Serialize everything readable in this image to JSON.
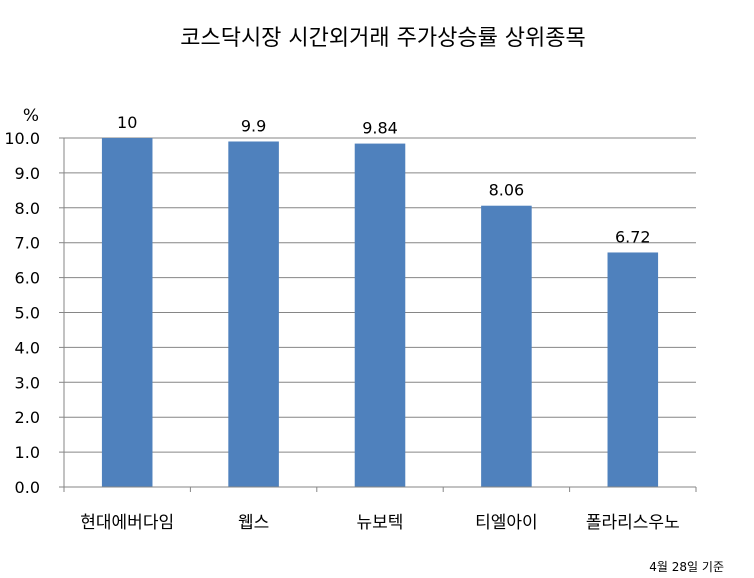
{
  "chart_data": {
    "type": "bar",
    "title": "코스닥시장 시간외거래  주가상승률 상위종목",
    "ylabel": "%",
    "xlabel": "",
    "categories": [
      "현대에버다임",
      "웹스",
      "뉴보텍",
      "티엘아이",
      "폴라리스우노"
    ],
    "values": [
      10,
      9.9,
      9.84,
      8.06,
      6.72
    ],
    "data_labels": [
      "10",
      "9.9",
      "9.84",
      "8.06",
      "6.72"
    ],
    "ylim": [
      0,
      10
    ],
    "yticks": [
      "0.0",
      "1.0",
      "2.0",
      "3.0",
      "4.0",
      "5.0",
      "6.0",
      "7.0",
      "8.0",
      "9.0",
      "10.0"
    ],
    "grid": true,
    "legend": "none",
    "bar_color": "#4F81BD",
    "grid_color": "#868686",
    "footnote": "4월 28일 기준"
  }
}
